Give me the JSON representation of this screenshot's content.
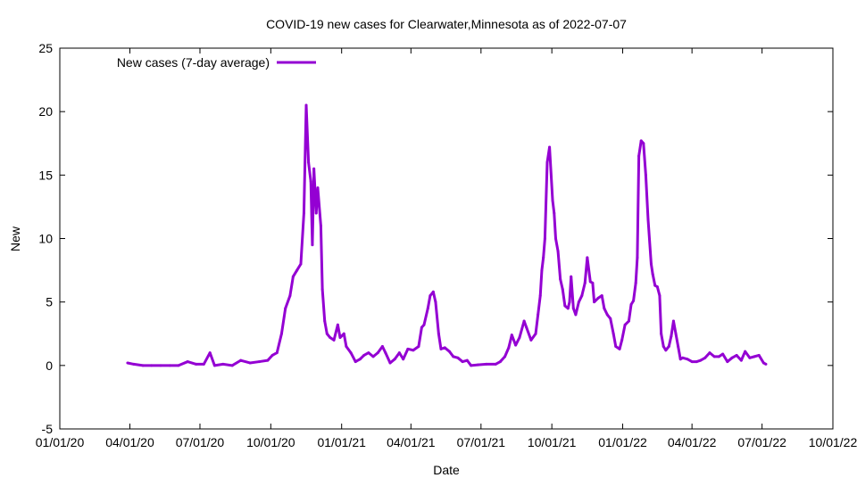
{
  "chart_data": {
    "type": "line",
    "title": "COVID-19 new cases for Clearwater,Minnesota as of 2022-07-07",
    "xlabel": "Date",
    "ylabel": "New",
    "x_unit": "days since 2020-01-01",
    "xlim": [
      0,
      1004
    ],
    "ylim": [
      -5,
      25
    ],
    "yticks": [
      -5,
      0,
      5,
      10,
      15,
      20,
      25
    ],
    "xticks": [
      {
        "day": 0,
        "label": "01/01/20"
      },
      {
        "day": 91,
        "label": "04/01/20"
      },
      {
        "day": 182,
        "label": "07/01/20"
      },
      {
        "day": 274,
        "label": "10/01/20"
      },
      {
        "day": 366,
        "label": "01/01/21"
      },
      {
        "day": 456,
        "label": "04/01/21"
      },
      {
        "day": 547,
        "label": "07/01/21"
      },
      {
        "day": 639,
        "label": "10/01/21"
      },
      {
        "day": 731,
        "label": "01/01/22"
      },
      {
        "day": 821,
        "label": "04/01/22"
      },
      {
        "day": 912,
        "label": "07/01/22"
      },
      {
        "day": 1004,
        "label": "10/01/22"
      }
    ],
    "grid": false,
    "legend_position": "top-left",
    "series": [
      {
        "name": "New cases (7-day average)",
        "color": "#9400d3",
        "x": [
          88,
          96,
          108,
          119,
          131,
          143,
          154,
          166,
          177,
          187,
          195,
          201,
          212,
          224,
          235,
          247,
          259,
          270,
          276,
          282,
          288,
          293,
          299,
          303,
          308,
          313,
          317,
          320,
          323,
          326,
          328,
          330,
          333,
          335,
          339,
          341,
          344,
          347,
          351,
          356,
          361,
          364,
          369,
          372,
          378,
          384,
          390,
          395,
          401,
          407,
          413,
          419,
          423,
          429,
          435,
          441,
          446,
          452,
          459,
          466,
          470,
          473,
          478,
          481,
          485,
          488,
          492,
          495,
          500,
          506,
          511,
          517,
          523,
          529,
          534,
          543,
          554,
          566,
          572,
          578,
          583,
          587,
          592,
          597,
          603,
          606,
          612,
          618,
          621,
          624,
          626,
          628,
          630,
          633,
          636,
          640,
          642,
          644,
          647,
          650,
          653,
          656,
          660,
          662,
          664,
          667,
          670,
          674,
          678,
          682,
          685,
          689,
          692,
          694,
          699,
          704,
          707,
          711,
          715,
          719,
          722,
          727,
          730,
          734,
          739,
          742,
          745,
          748,
          750,
          752,
          755,
          758,
          761,
          764,
          768,
          770,
          773,
          776,
          779,
          781,
          784,
          787,
          791,
          794,
          797,
          800,
          803,
          806,
          809,
          815,
          821,
          827,
          832,
          838,
          844,
          850,
          856,
          861,
          867,
          873,
          879,
          885,
          890,
          896,
          902,
          908,
          914,
          917
        ],
        "y": [
          0.2,
          0.1,
          0,
          0,
          0,
          0,
          0,
          0.3,
          0.1,
          0.1,
          1,
          0,
          0.1,
          0,
          0.4,
          0.2,
          0.3,
          0.4,
          0.8,
          1,
          2.5,
          4.5,
          5.5,
          7,
          7.5,
          8,
          12,
          20.5,
          16,
          14.5,
          9.5,
          15.5,
          12,
          14,
          11,
          6,
          3.5,
          2.5,
          2.2,
          2,
          3.2,
          2.2,
          2.5,
          1.5,
          1,
          0.3,
          0.5,
          0.8,
          1,
          0.7,
          1,
          1.5,
          1,
          0.2,
          0.5,
          1,
          0.5,
          1.3,
          1.2,
          1.5,
          3,
          3.2,
          4.5,
          5.5,
          5.8,
          5,
          2.5,
          1.3,
          1.4,
          1.1,
          0.7,
          0.6,
          0.3,
          0.4,
          0,
          0.05,
          0.1,
          0.1,
          0.3,
          0.7,
          1.4,
          2.4,
          1.6,
          2.2,
          3.5,
          3,
          2,
          2.5,
          4,
          5.5,
          7.5,
          8.5,
          10,
          16,
          17.2,
          13,
          12,
          10,
          9,
          6.8,
          6,
          4.7,
          4.5,
          5,
          7,
          4.5,
          4,
          5,
          5.5,
          6.5,
          8.5,
          6.6,
          6.5,
          5,
          5.3,
          5.5,
          4.5,
          4,
          3.7,
          2.5,
          1.5,
          1.3,
          2,
          3.2,
          3.5,
          4.8,
          5.1,
          6.5,
          8.5,
          16.5,
          17.7,
          17.5,
          15,
          11.5,
          8,
          7.2,
          6.3,
          6.2,
          5.5,
          2.5,
          1.5,
          1.2,
          1.5,
          2.3,
          3.5,
          2.5,
          1.5,
          0.5,
          0.6,
          0.5,
          0.3,
          0.3,
          0.4,
          0.6,
          1,
          0.7,
          0.7,
          0.9,
          0.3,
          0.6,
          0.8,
          0.4,
          1.1,
          0.6,
          0.7,
          0.8,
          0.2,
          0.1
        ]
      }
    ]
  }
}
